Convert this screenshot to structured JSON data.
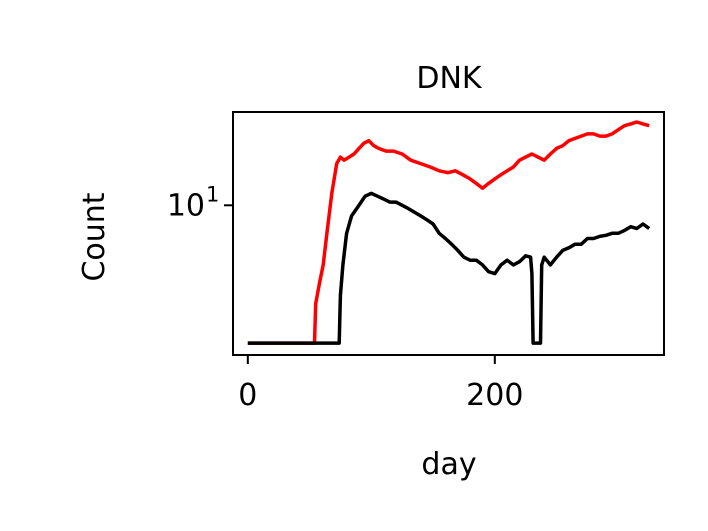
{
  "chart_data": {
    "type": "line",
    "title": "DNK",
    "xlabel": "day",
    "ylabel": "Count",
    "yscale": "log",
    "xlim": [
      -12,
      337
    ],
    "ylim": [
      1.0,
      42
    ],
    "xticks": [
      {
        "value": 0,
        "label": "0"
      },
      {
        "value": 200,
        "label": "200"
      }
    ],
    "yticks": [
      {
        "value": 10,
        "base": "10",
        "exp": "1"
      }
    ],
    "grid": false,
    "legend": "none",
    "series": [
      {
        "color": "#ff0000",
        "points": [
          [
            0,
            1.2
          ],
          [
            10,
            1.2
          ],
          [
            20,
            1.2
          ],
          [
            30,
            1.2
          ],
          [
            40,
            1.2
          ],
          [
            50,
            1.2
          ],
          [
            54,
            1.2
          ],
          [
            55,
            2.2
          ],
          [
            58,
            3.0
          ],
          [
            61,
            4.0
          ],
          [
            64,
            6.5
          ],
          [
            68,
            12
          ],
          [
            72,
            19
          ],
          [
            75,
            21
          ],
          [
            78,
            20
          ],
          [
            82,
            21
          ],
          [
            86,
            22
          ],
          [
            90,
            24
          ],
          [
            94,
            26
          ],
          [
            98,
            27
          ],
          [
            102,
            25
          ],
          [
            106,
            24
          ],
          [
            112,
            23
          ],
          [
            118,
            23
          ],
          [
            125,
            22
          ],
          [
            132,
            20
          ],
          [
            140,
            19
          ],
          [
            148,
            18
          ],
          [
            155,
            17
          ],
          [
            162,
            16.5
          ],
          [
            168,
            17
          ],
          [
            174,
            16
          ],
          [
            180,
            15
          ],
          [
            185,
            14
          ],
          [
            190,
            13
          ],
          [
            195,
            14
          ],
          [
            200,
            15
          ],
          [
            205,
            16
          ],
          [
            210,
            17
          ],
          [
            215,
            18
          ],
          [
            220,
            20
          ],
          [
            225,
            21
          ],
          [
            230,
            22
          ],
          [
            235,
            21
          ],
          [
            240,
            20
          ],
          [
            245,
            22
          ],
          [
            250,
            24
          ],
          [
            255,
            25
          ],
          [
            260,
            27
          ],
          [
            265,
            28
          ],
          [
            270,
            29
          ],
          [
            275,
            30
          ],
          [
            280,
            30
          ],
          [
            285,
            29
          ],
          [
            290,
            29
          ],
          [
            295,
            30
          ],
          [
            300,
            32
          ],
          [
            305,
            34
          ],
          [
            310,
            35
          ],
          [
            315,
            36
          ],
          [
            320,
            35
          ],
          [
            325,
            34
          ]
        ]
      },
      {
        "color": "#000000",
        "points": [
          [
            0,
            1.2
          ],
          [
            20,
            1.2
          ],
          [
            40,
            1.2
          ],
          [
            60,
            1.2
          ],
          [
            70,
            1.2
          ],
          [
            74,
            1.2
          ],
          [
            75,
            2.5
          ],
          [
            77,
            4.0
          ],
          [
            80,
            6.5
          ],
          [
            84,
            8.5
          ],
          [
            90,
            10
          ],
          [
            95,
            11.5
          ],
          [
            100,
            12
          ],
          [
            105,
            11.5
          ],
          [
            110,
            11
          ],
          [
            115,
            10.5
          ],
          [
            120,
            10.5
          ],
          [
            125,
            10
          ],
          [
            130,
            9.5
          ],
          [
            135,
            9
          ],
          [
            140,
            8.5
          ],
          [
            145,
            8
          ],
          [
            150,
            7.5
          ],
          [
            155,
            6.5
          ],
          [
            160,
            6
          ],
          [
            165,
            5.5
          ],
          [
            170,
            5
          ],
          [
            175,
            4.5
          ],
          [
            180,
            4.3
          ],
          [
            185,
            4.3
          ],
          [
            190,
            4.0
          ],
          [
            195,
            3.6
          ],
          [
            200,
            3.5
          ],
          [
            205,
            4.0
          ],
          [
            210,
            4.3
          ],
          [
            215,
            4.0
          ],
          [
            220,
            4.2
          ],
          [
            225,
            4.6
          ],
          [
            229,
            4.5
          ],
          [
            230,
            3.5
          ],
          [
            231,
            1.2
          ],
          [
            235,
            1.2
          ],
          [
            237,
            1.2
          ],
          [
            238,
            4.0
          ],
          [
            240,
            4.5
          ],
          [
            245,
            4.0
          ],
          [
            250,
            4.5
          ],
          [
            255,
            5.0
          ],
          [
            260,
            5.2
          ],
          [
            265,
            5.5
          ],
          [
            270,
            5.5
          ],
          [
            275,
            6.0
          ],
          [
            280,
            6.0
          ],
          [
            285,
            6.2
          ],
          [
            290,
            6.3
          ],
          [
            295,
            6.5
          ],
          [
            300,
            6.5
          ],
          [
            305,
            6.8
          ],
          [
            310,
            7.2
          ],
          [
            315,
            7.0
          ],
          [
            320,
            7.5
          ],
          [
            325,
            7.0
          ]
        ]
      }
    ]
  }
}
